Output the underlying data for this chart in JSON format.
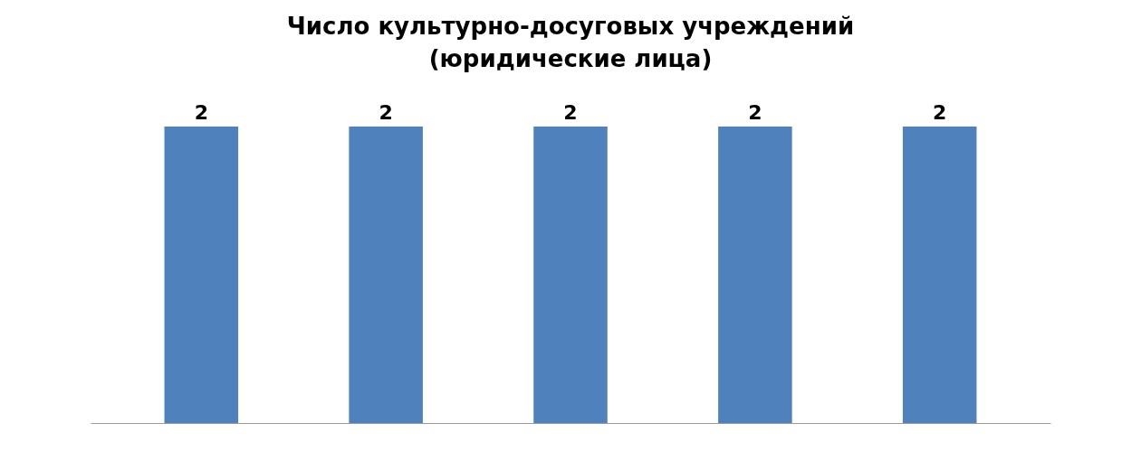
{
  "chart_data": {
    "type": "bar",
    "title": "Число культурно-досуговых учреждений\n(юридические лица)",
    "categories": [
      null,
      null,
      null,
      null,
      null
    ],
    "values": [
      2,
      2,
      2,
      2,
      2
    ],
    "color": "#4f81bd",
    "relative": false,
    "data_labels": true
  }
}
